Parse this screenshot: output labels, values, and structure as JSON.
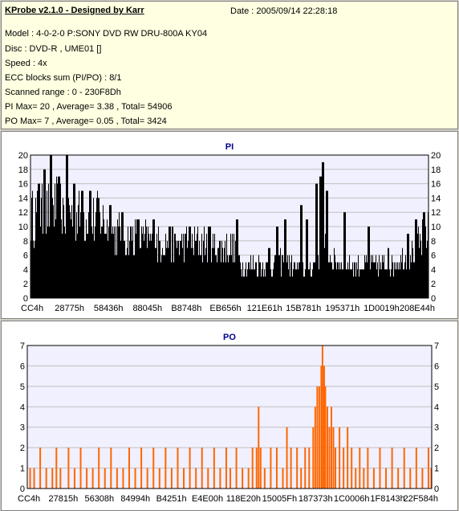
{
  "header": {
    "title": "KProbe v2.1.0 - Designed by Karr",
    "date": "Date : 2005/09/14 22:28:18",
    "model": "Model : 4-0-2-0 P:SONY    DVD RW DRU-800A  KY04",
    "disc": "Disc : DVD-R , UME01 []",
    "speed": "Speed : 4x",
    "ecc": "ECC blocks sum (PI/PO) : 8/1",
    "range": "Scanned range : 0 - 230F8Dh",
    "pi_summary": "PI Max= 20 , Average= 3.38 , Total= 54906",
    "po_summary": "PO Max= 7 , Average= 0.05 , Total= 3424"
  },
  "colors": {
    "pi_bars": "#000000",
    "po_bars": "#ff6600",
    "plot_bg": "#f0f0ff",
    "grid": "#c0c0c0",
    "title": "#00008b"
  },
  "chart_data": [
    {
      "type": "bar",
      "title": "PI",
      "ylim": [
        0,
        20
      ],
      "yticks": [
        0,
        2,
        4,
        6,
        8,
        10,
        12,
        14,
        16,
        18,
        20
      ],
      "xticks": [
        "CC4h",
        "28775h",
        "58436h",
        "88045h",
        "B8748h",
        "EB656h",
        "121E61h",
        "15B781h",
        "195371h",
        "1D0019h",
        "208E44h"
      ],
      "grid": true,
      "series": [
        {
          "profile": [
            [
              0,
              11
            ],
            [
              0.03,
              12
            ],
            [
              0.06,
              12.5
            ],
            [
              0.09,
              12
            ],
            [
              0.12,
              11.5
            ],
            [
              0.15,
              11
            ],
            [
              0.18,
              11
            ],
            [
              0.21,
              9
            ],
            [
              0.25,
              8.5
            ],
            [
              0.3,
              8
            ],
            [
              0.35,
              7.5
            ],
            [
              0.4,
              7.5
            ],
            [
              0.45,
              7.5
            ],
            [
              0.5,
              7
            ],
            [
              0.52,
              6.5
            ],
            [
              0.53,
              5
            ],
            [
              0.56,
              4.5
            ],
            [
              0.6,
              4.5
            ],
            [
              0.64,
              5
            ],
            [
              0.68,
              4
            ],
            [
              0.71,
              4.5
            ],
            [
              0.74,
              8
            ],
            [
              0.76,
              5
            ],
            [
              0.8,
              4.5
            ],
            [
              0.85,
              4.5
            ],
            [
              0.9,
              4.5
            ],
            [
              0.95,
              6
            ],
            [
              1.0,
              9
            ]
          ],
          "spikes": [
            [
              0.02,
              16
            ],
            [
              0.035,
              18
            ],
            [
              0.05,
              20
            ],
            [
              0.07,
              17
            ],
            [
              0.09,
              20
            ],
            [
              0.11,
              16
            ],
            [
              0.13,
              15
            ],
            [
              0.15,
              15
            ],
            [
              0.17,
              14
            ],
            [
              0.2,
              13
            ],
            [
              0.23,
              12
            ],
            [
              0.27,
              11
            ],
            [
              0.31,
              11
            ],
            [
              0.35,
              10
            ],
            [
              0.4,
              10
            ],
            [
              0.45,
              10
            ],
            [
              0.52,
              10.5
            ],
            [
              0.6,
              7
            ],
            [
              0.62,
              10
            ],
            [
              0.64,
              11
            ],
            [
              0.68,
              13
            ],
            [
              0.695,
              11
            ],
            [
              0.72,
              16
            ],
            [
              0.73,
              17
            ],
            [
              0.735,
              19
            ],
            [
              0.745,
              15
            ],
            [
              0.79,
              12
            ],
            [
              0.85,
              10
            ],
            [
              0.9,
              7
            ],
            [
              0.95,
              9
            ],
            [
              0.97,
              11
            ],
            [
              0.99,
              12
            ]
          ]
        }
      ]
    },
    {
      "type": "bar",
      "title": "PO",
      "ylim": [
        0,
        7
      ],
      "yticks": [
        0,
        1,
        2,
        3,
        4,
        5,
        6,
        7
      ],
      "xticks": [
        "CC4h",
        "27815h",
        "56308h",
        "84994h",
        "B4251h",
        "E4E00h",
        "118E20h",
        "15005Fh",
        "187373h",
        "1C0006h",
        "1F8143h",
        "22F584h"
      ],
      "grid": true,
      "series": [
        {
          "bars": [
            [
              0.005,
              1
            ],
            [
              0.015,
              1
            ],
            [
              0.03,
              2
            ],
            [
              0.045,
              1
            ],
            [
              0.06,
              1
            ],
            [
              0.07,
              2
            ],
            [
              0.08,
              1
            ],
            [
              0.1,
              2
            ],
            [
              0.115,
              1
            ],
            [
              0.13,
              2
            ],
            [
              0.145,
              1
            ],
            [
              0.16,
              1
            ],
            [
              0.175,
              2
            ],
            [
              0.19,
              1
            ],
            [
              0.205,
              2
            ],
            [
              0.22,
              1
            ],
            [
              0.235,
              1
            ],
            [
              0.25,
              2
            ],
            [
              0.265,
              1
            ],
            [
              0.28,
              2
            ],
            [
              0.295,
              1
            ],
            [
              0.31,
              2
            ],
            [
              0.325,
              1
            ],
            [
              0.34,
              2
            ],
            [
              0.355,
              1
            ],
            [
              0.37,
              2
            ],
            [
              0.385,
              1
            ],
            [
              0.4,
              2
            ],
            [
              0.415,
              1
            ],
            [
              0.43,
              2
            ],
            [
              0.445,
              1
            ],
            [
              0.46,
              2
            ],
            [
              0.475,
              1
            ],
            [
              0.49,
              2
            ],
            [
              0.5,
              1
            ],
            [
              0.515,
              2
            ],
            [
              0.53,
              1
            ],
            [
              0.545,
              1
            ],
            [
              0.555,
              2
            ],
            [
              0.565,
              2
            ],
            [
              0.57,
              4
            ],
            [
              0.575,
              2
            ],
            [
              0.585,
              1
            ],
            [
              0.6,
              2
            ],
            [
              0.615,
              2
            ],
            [
              0.63,
              1
            ],
            [
              0.64,
              3
            ],
            [
              0.65,
              2
            ],
            [
              0.665,
              2
            ],
            [
              0.675,
              1
            ],
            [
              0.685,
              2
            ],
            [
              0.695,
              2
            ],
            [
              0.705,
              3
            ],
            [
              0.71,
              4
            ],
            [
              0.715,
              5
            ],
            [
              0.72,
              5
            ],
            [
              0.725,
              6
            ],
            [
              0.728,
              7
            ],
            [
              0.732,
              6
            ],
            [
              0.735,
              5
            ],
            [
              0.74,
              4
            ],
            [
              0.745,
              3
            ],
            [
              0.75,
              4
            ],
            [
              0.755,
              3
            ],
            [
              0.76,
              2
            ],
            [
              0.77,
              3
            ],
            [
              0.78,
              2
            ],
            [
              0.79,
              3
            ],
            [
              0.8,
              2
            ],
            [
              0.81,
              1
            ],
            [
              0.82,
              2
            ],
            [
              0.83,
              1
            ],
            [
              0.84,
              2
            ],
            [
              0.855,
              1
            ],
            [
              0.87,
              2
            ],
            [
              0.885,
              1
            ],
            [
              0.9,
              2
            ],
            [
              0.915,
              1
            ],
            [
              0.93,
              2
            ],
            [
              0.945,
              1
            ],
            [
              0.96,
              2
            ],
            [
              0.975,
              1
            ],
            [
              0.99,
              2
            ],
            [
              0.997,
              1
            ]
          ]
        }
      ]
    }
  ]
}
